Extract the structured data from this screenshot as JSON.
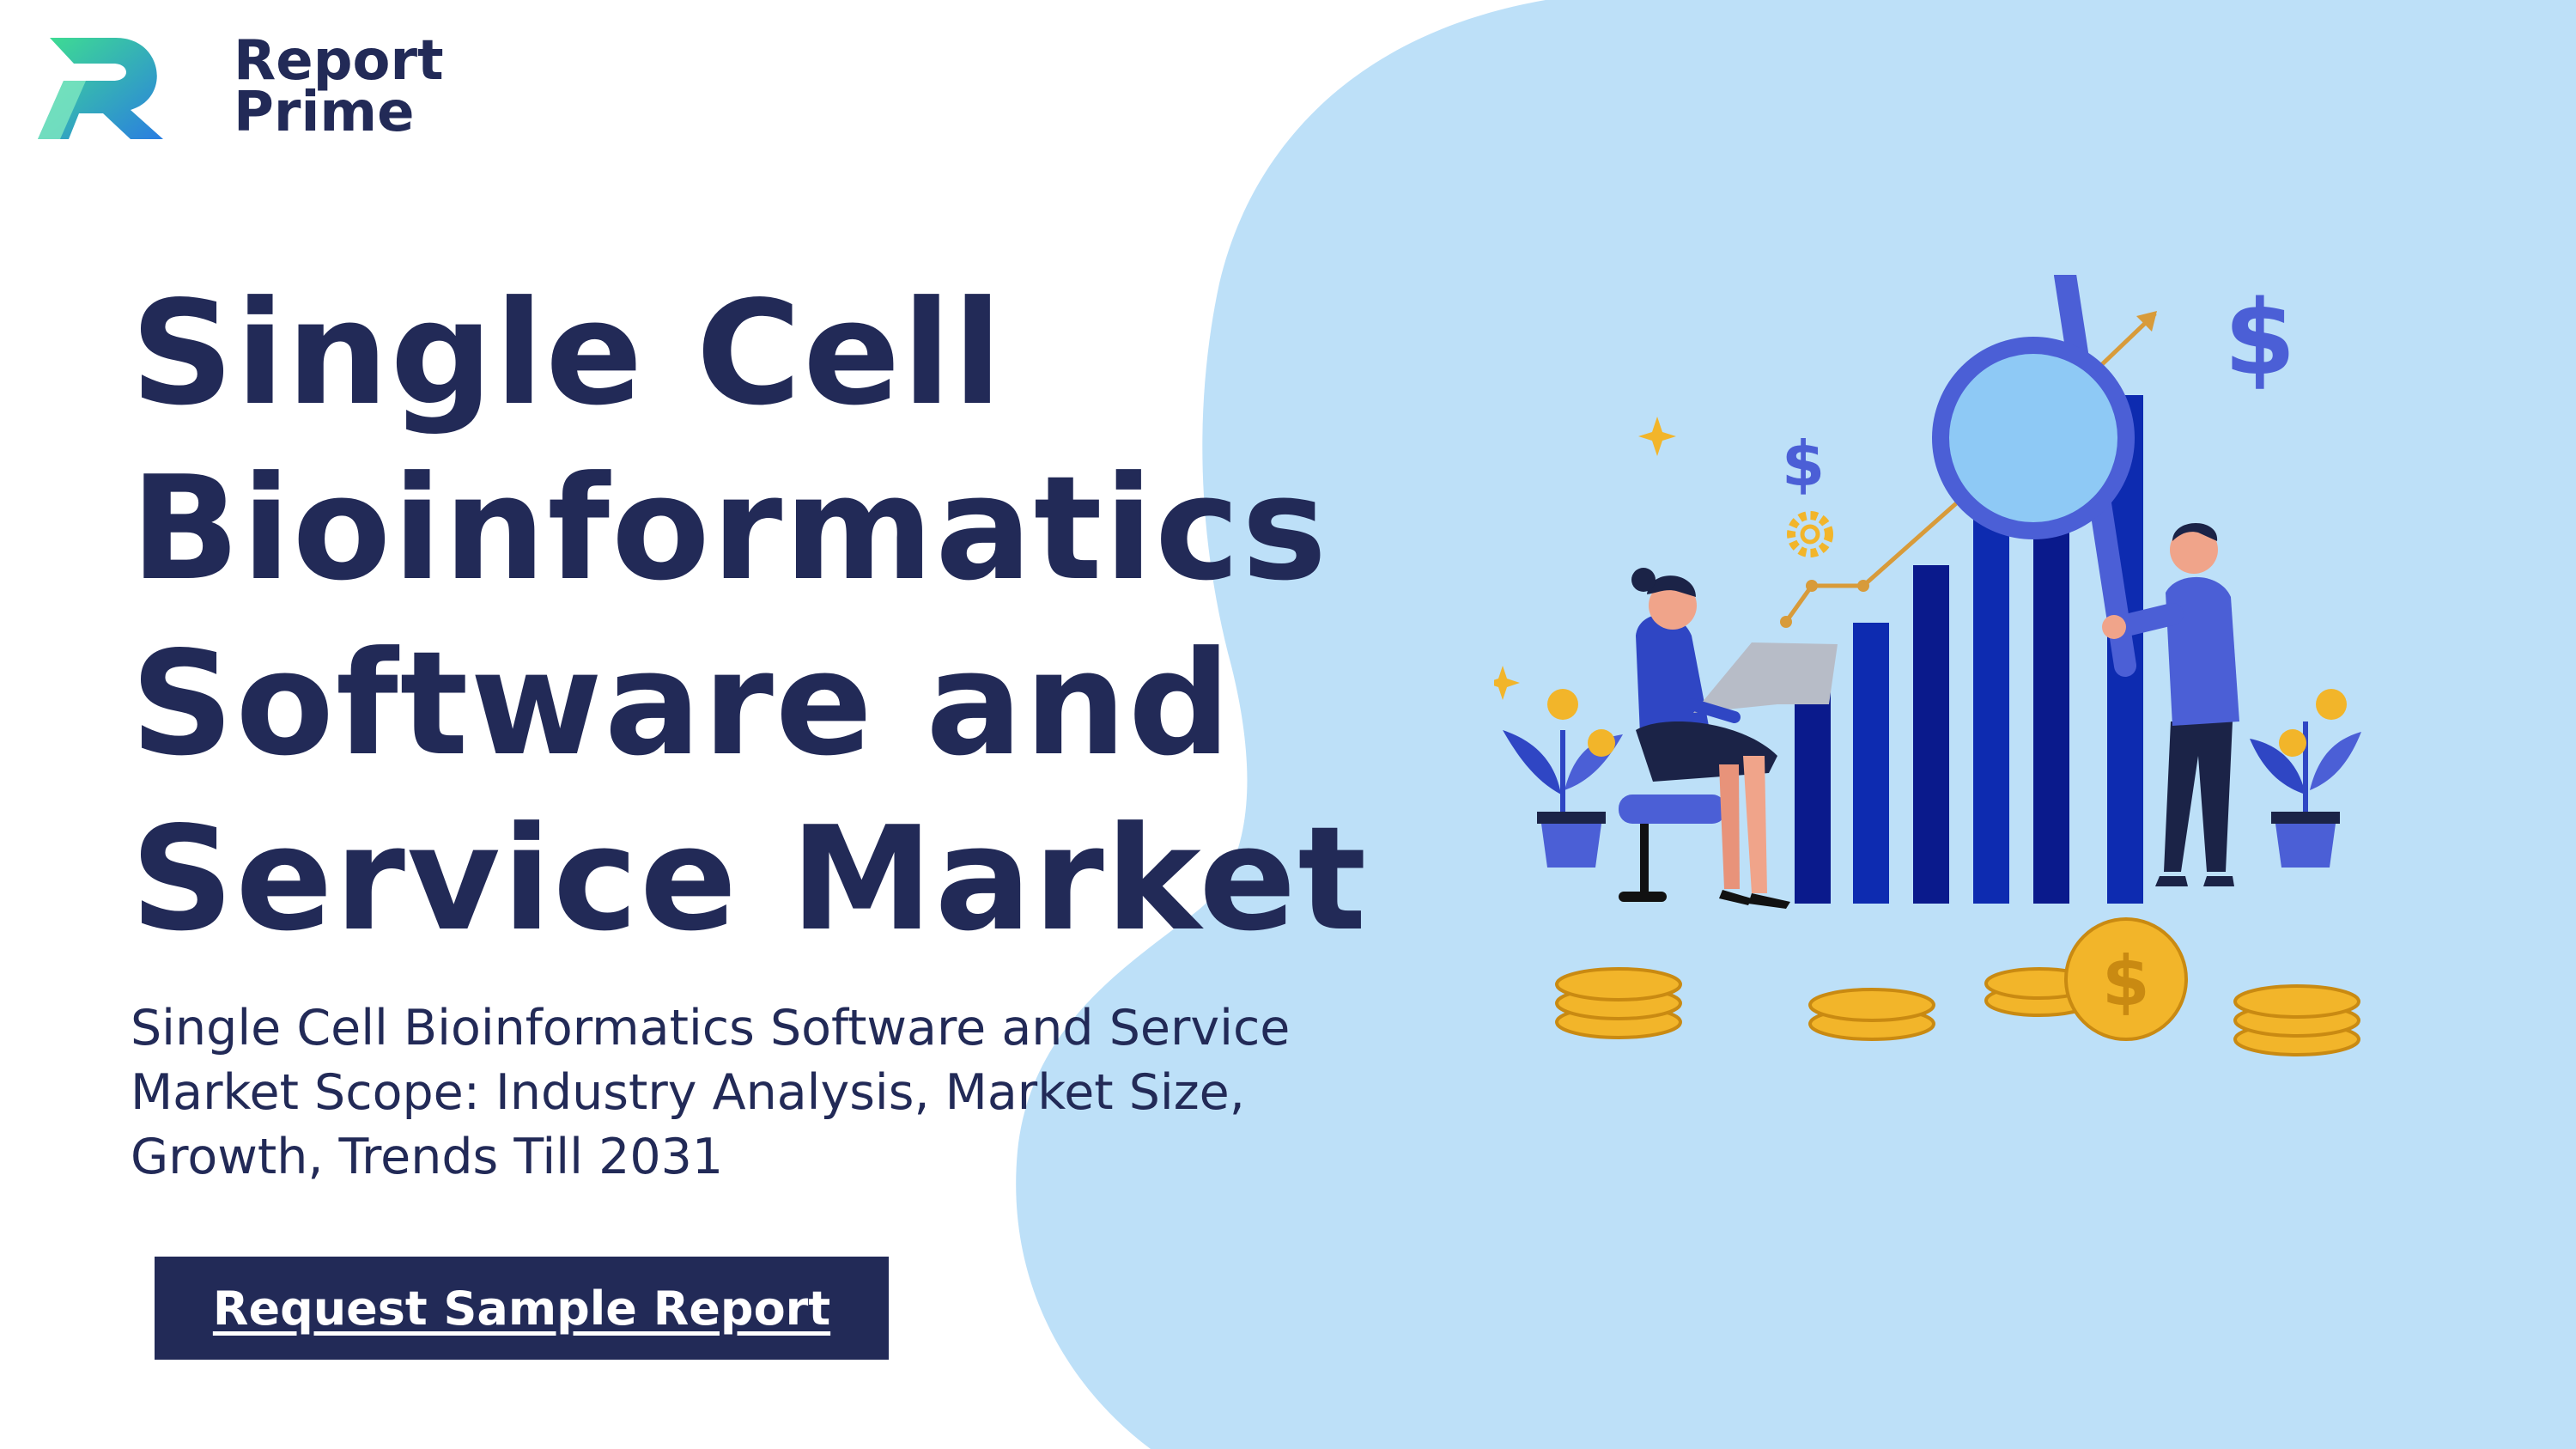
{
  "brand": {
    "name_line1": "Report",
    "name_line2": "Prime",
    "logo_icon": "report-prime-r-logo"
  },
  "hero": {
    "title_lines": [
      "Single Cell",
      "Bioinformatics",
      "Software and",
      "Service Market"
    ],
    "subtitle_lines": [
      "Single Cell Bioinformatics Software and Service",
      "Market Scope: Industry Analysis, Market Size,",
      "Growth, Trends Till 2031"
    ],
    "cta_label": "Request Sample Report"
  },
  "illustration": {
    "name": "market-analysis-illustration",
    "dollar_symbol": "$"
  },
  "colors": {
    "navy": "#222a57",
    "light_blue": "#bde0f8",
    "accent_blue": "#4b5fd6",
    "gold": "#f2b52a"
  }
}
